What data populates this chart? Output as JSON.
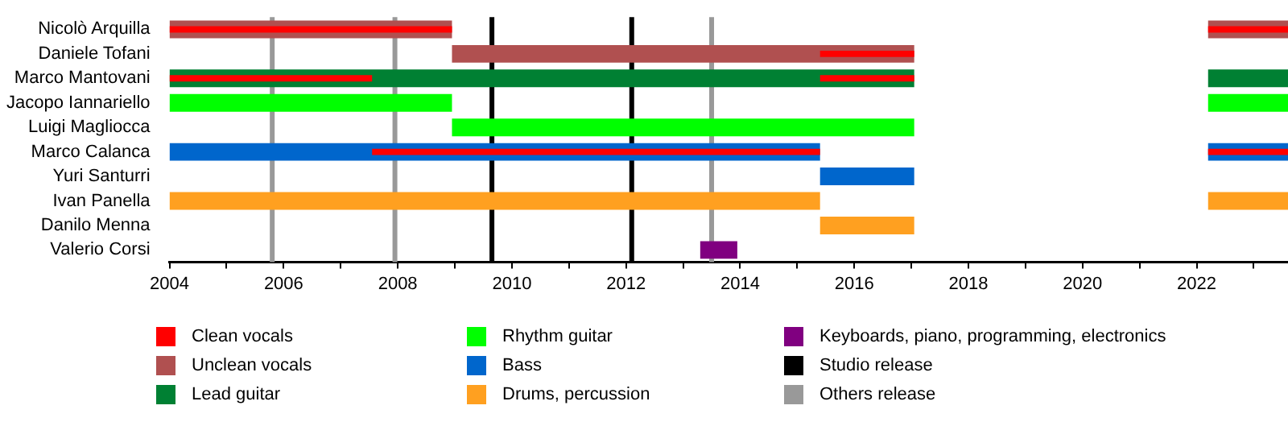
{
  "chart_data": {
    "type": "bar",
    "orientation": "horizontal",
    "legend": "bottom",
    "grid": false,
    "categories": [
      "Nicolò Arquilla",
      "Daniele Tofani",
      "Marco Mantovani",
      "Jacopo Iannariello",
      "Luigi Magliocca",
      "Marco Calanca",
      "Yuri Santurri",
      "Ivan Panella",
      "Danilo Menna",
      "Valerio Corsi"
    ],
    "series": [
      {
        "name": "Clean vocals",
        "color": "#ff0000",
        "base": [
          2004,
          2015.4,
          2004,
          null,
          null,
          2007.55,
          null,
          null,
          null,
          null
        ],
        "values": [
          4.95,
          1.65,
          3.55,
          null,
          null,
          7.85,
          null,
          null,
          null,
          null
        ]
      },
      {
        "color": "#ff0000",
        "base": [
          2022.2,
          null,
          2015.4,
          null,
          null,
          2022.2,
          null,
          null,
          null,
          null
        ],
        "values": [
          1.4,
          null,
          1.65,
          null,
          null,
          1.4,
          null,
          null,
          null,
          null
        ]
      },
      {
        "name": "Unclean vocals",
        "color": "#b05050",
        "base": [
          2004,
          2008.95,
          null,
          null,
          null,
          null,
          null,
          null,
          null,
          null
        ],
        "values": [
          4.95,
          8.1,
          null,
          null,
          null,
          null,
          null,
          null,
          null,
          null
        ]
      },
      {
        "color": "#b05050",
        "base": [
          2022.2,
          null,
          null,
          null,
          null,
          null,
          null,
          null,
          null,
          null
        ],
        "values": [
          1.4,
          null,
          null,
          null,
          null,
          null,
          null,
          null,
          null,
          null
        ]
      },
      {
        "name": "Lead guitar",
        "color": "#008033",
        "base": [
          null,
          null,
          2004,
          null,
          null,
          null,
          null,
          null,
          null,
          null
        ],
        "values": [
          null,
          null,
          13.05,
          null,
          null,
          null,
          null,
          null,
          null,
          null
        ]
      },
      {
        "color": "#008033",
        "base": [
          null,
          null,
          2022.2,
          null,
          null,
          null,
          null,
          null,
          null,
          null
        ],
        "values": [
          null,
          null,
          1.4,
          null,
          null,
          null,
          null,
          null,
          null,
          null
        ]
      },
      {
        "name": "Rhythm guitar",
        "color": "#00ff00",
        "base": [
          null,
          null,
          null,
          2004,
          2008.95,
          null,
          null,
          null,
          null,
          null
        ],
        "values": [
          null,
          null,
          null,
          4.95,
          8.1,
          null,
          null,
          null,
          null,
          null
        ]
      },
      {
        "color": "#00ff00",
        "base": [
          null,
          null,
          null,
          2022.2,
          null,
          null,
          null,
          null,
          null,
          null
        ],
        "values": [
          null,
          null,
          null,
          1.4,
          null,
          null,
          null,
          null,
          null,
          null
        ]
      },
      {
        "name": "Bass",
        "color": "#0066cc",
        "base": [
          null,
          null,
          null,
          null,
          null,
          2004,
          2015.4,
          null,
          null,
          null
        ],
        "values": [
          null,
          null,
          null,
          null,
          null,
          11.4,
          1.65,
          null,
          null,
          null
        ]
      },
      {
        "color": "#0066cc",
        "base": [
          null,
          null,
          null,
          null,
          null,
          2022.2,
          null,
          null,
          null,
          null
        ],
        "values": [
          null,
          null,
          null,
          null,
          null,
          1.4,
          null,
          null,
          null,
          null
        ]
      },
      {
        "name": "Drums, percussion",
        "color": "#ffa020",
        "base": [
          null,
          null,
          null,
          null,
          null,
          null,
          null,
          2004,
          2015.4,
          null
        ],
        "values": [
          null,
          null,
          null,
          null,
          null,
          null,
          null,
          11.4,
          1.65,
          null
        ]
      },
      {
        "color": "#ffa020",
        "base": [
          null,
          null,
          null,
          null,
          null,
          null,
          null,
          2022.2,
          null,
          null
        ],
        "values": [
          null,
          null,
          null,
          null,
          null,
          null,
          null,
          1.4,
          null,
          null
        ]
      },
      {
        "name": "Keyboards, piano, programming, electronics",
        "color": "#800080",
        "base": [
          null,
          null,
          null,
          null,
          null,
          null,
          null,
          null,
          null,
          2013.3
        ],
        "values": [
          null,
          null,
          null,
          null,
          null,
          null,
          null,
          null,
          null,
          0.65
        ]
      }
    ],
    "ref_lines": [
      {
        "axis": "x",
        "value": 2009.65,
        "label": "Studio release",
        "color": "#000000"
      },
      {
        "axis": "x",
        "value": 2012.1,
        "color": "#000000"
      },
      {
        "axis": "x",
        "value": 2005.8,
        "label": "Others release",
        "color": "#999999"
      },
      {
        "axis": "x",
        "value": 2007.95,
        "color": "#999999"
      },
      {
        "axis": "x",
        "value": 2013.5,
        "color": "#999999"
      }
    ],
    "xlim": [
      2004,
      2023.6
    ],
    "xticks": [
      2004,
      {
        "value": 2005,
        "label": null
      },
      2006,
      {
        "value": 2007,
        "label": null
      },
      2008,
      {
        "value": 2009,
        "label": null
      },
      2010,
      {
        "value": 2011,
        "label": null
      },
      2012,
      {
        "value": 2013,
        "label": null
      },
      2014,
      {
        "value": 2015,
        "label": null
      },
      2016,
      {
        "value": 2017,
        "label": null
      },
      2018,
      {
        "value": 2019,
        "label": null
      },
      2020,
      {
        "value": 2021,
        "label": null
      },
      2022,
      {
        "value": 2023,
        "label": null
      }
    ]
  }
}
